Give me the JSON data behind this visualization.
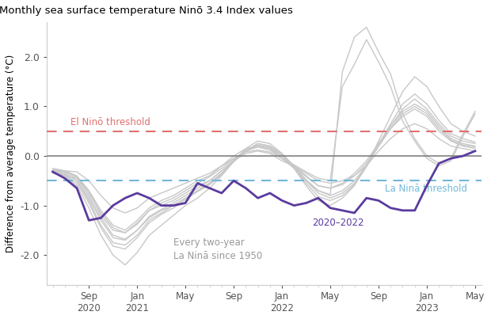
{
  "title": "Monthly sea surface temperature Ninō 3.4 Index values",
  "ylabel": "Difference from average temperature (°C)",
  "el_nino_threshold": 0.5,
  "la_nina_threshold": -0.5,
  "el_nino_label": "El Ninō threshold",
  "la_nina_label": "La Ninā threshold",
  "annotation_historical": "Every two-year\nLa Ninā since 1950",
  "annotation_current": "2020–2022",
  "ylim": [
    -2.6,
    2.7
  ],
  "yticks": [
    -2.0,
    -1.0,
    0.0,
    1.0,
    2.0
  ],
  "current_line_color": "#5B3B9E",
  "historical_line_color": "#C8C8C8",
  "el_nino_color": "#E07070",
  "la_nina_color": "#70B8D8",
  "zero_line_color": "#808080",
  "background_color": "#ffffff",
  "historical_series": [
    [
      -0.35,
      -0.4,
      -0.45,
      -0.7,
      -1.2,
      -1.5,
      -1.55,
      -1.35,
      -1.1,
      -1.0,
      -0.9,
      -0.75,
      -0.6,
      -0.5,
      -0.3,
      -0.1,
      0.05,
      0.1,
      0.05,
      -0.1,
      -0.2,
      -0.35,
      -0.5,
      -0.55,
      -0.5,
      -0.4,
      -0.2,
      0.1,
      0.35,
      0.55,
      0.65,
      0.55,
      0.35,
      0.2,
      0.15,
      0.1
    ],
    [
      -0.3,
      -0.35,
      -0.5,
      -0.85,
      -1.3,
      -1.65,
      -1.7,
      -1.5,
      -1.25,
      -1.1,
      -1.0,
      -0.85,
      -0.7,
      -0.55,
      -0.35,
      -0.1,
      0.1,
      0.2,
      0.15,
      -0.05,
      -0.25,
      -0.5,
      -0.7,
      -0.8,
      -0.7,
      -0.5,
      -0.2,
      0.2,
      0.55,
      0.8,
      0.95,
      0.8,
      0.5,
      0.3,
      0.2,
      0.15
    ],
    [
      -0.25,
      -0.3,
      -0.4,
      -0.7,
      -1.1,
      -1.4,
      -1.5,
      -1.3,
      -1.05,
      -0.9,
      -0.8,
      -0.65,
      -0.5,
      -0.4,
      -0.2,
      0.0,
      0.15,
      0.2,
      0.15,
      0.0,
      -0.2,
      -0.4,
      -0.6,
      -0.65,
      -0.55,
      -0.35,
      -0.1,
      0.25,
      0.6,
      0.9,
      1.05,
      0.9,
      0.6,
      0.35,
      0.25,
      0.2
    ],
    [
      -0.3,
      -0.35,
      -0.5,
      -0.9,
      -1.4,
      -1.75,
      -1.8,
      -1.6,
      -1.3,
      -1.15,
      -1.0,
      -0.85,
      -0.7,
      -0.55,
      -0.35,
      -0.1,
      0.1,
      0.25,
      0.2,
      0.05,
      -0.2,
      -0.5,
      -0.75,
      -0.85,
      -0.75,
      -0.55,
      -0.2,
      0.2,
      0.6,
      0.95,
      1.15,
      0.95,
      0.65,
      0.4,
      0.3,
      0.25
    ],
    [
      -0.3,
      -0.4,
      -0.6,
      -1.05,
      -1.6,
      -2.0,
      -2.2,
      -1.95,
      -1.6,
      -1.4,
      -1.2,
      -1.0,
      -0.85,
      -0.65,
      -0.4,
      -0.1,
      0.15,
      0.3,
      0.25,
      0.05,
      -0.25,
      -0.6,
      -0.9,
      -1.0,
      -0.85,
      -0.6,
      -0.2,
      0.3,
      0.8,
      1.3,
      1.6,
      1.4,
      1.0,
      0.65,
      0.5,
      0.4
    ],
    [
      -0.28,
      -0.3,
      -0.42,
      -0.75,
      -1.15,
      -1.45,
      -1.55,
      -1.38,
      -1.1,
      -0.95,
      -0.85,
      -0.7,
      -0.55,
      -0.42,
      -0.25,
      -0.05,
      0.1,
      0.18,
      0.12,
      -0.05,
      -0.22,
      -0.42,
      -0.6,
      -0.65,
      -0.58,
      -0.4,
      -0.15,
      0.2,
      0.55,
      0.85,
      1.0,
      0.85,
      0.55,
      0.32,
      0.22,
      0.18
    ],
    [
      -0.32,
      -0.38,
      -0.55,
      -0.95,
      -1.45,
      -1.82,
      -1.88,
      -1.65,
      -1.35,
      -1.18,
      -1.05,
      -0.88,
      -0.72,
      -0.58,
      -0.38,
      -0.12,
      0.1,
      0.25,
      0.2,
      0.0,
      -0.25,
      -0.55,
      -0.82,
      -0.9,
      -0.8,
      -0.58,
      -0.22,
      0.22,
      0.65,
      1.05,
      1.25,
      1.05,
      0.72,
      0.45,
      0.35,
      0.28
    ]
  ],
  "historical_series_2": [
    [
      -0.3,
      -0.3,
      -0.32,
      -0.5,
      -0.8,
      -1.05,
      -1.15,
      -1.05,
      -0.85,
      -0.75,
      -0.65,
      -0.55,
      -0.45,
      -0.35,
      -0.2,
      -0.05,
      0.08,
      0.12,
      0.08,
      -0.05,
      -0.18,
      -0.32,
      -0.45,
      -0.5,
      1.4,
      1.85,
      2.35,
      1.9,
      1.4,
      0.7,
      0.3,
      -0.05,
      -0.2,
      -0.1,
      0.4,
      0.85
    ],
    [
      -0.3,
      -0.32,
      -0.45,
      -0.8,
      -1.25,
      -1.6,
      -1.68,
      -1.5,
      -1.22,
      -1.08,
      -0.95,
      -0.8,
      -0.65,
      -0.5,
      -0.3,
      -0.08,
      0.12,
      0.22,
      0.18,
      0.02,
      -0.22,
      -0.48,
      -0.7,
      -0.78,
      1.7,
      2.4,
      2.6,
      2.1,
      1.65,
      0.85,
      0.35,
      0.0,
      -0.15,
      -0.05,
      0.45,
      0.9
    ]
  ],
  "current_series": [
    -0.32,
    -0.45,
    -0.65,
    -1.3,
    -1.25,
    -1.0,
    -0.85,
    -0.75,
    -0.85,
    -1.0,
    -1.0,
    -0.95,
    -0.55,
    -0.65,
    -0.75,
    -0.5,
    -0.65,
    -0.85,
    -0.75,
    -0.9,
    -1.0,
    -0.95,
    -0.85,
    -1.05,
    -1.1,
    -1.15,
    -0.85,
    -0.9,
    -1.05,
    -1.1,
    -1.1,
    -0.6,
    -0.15,
    -0.05,
    0.0,
    0.1
  ],
  "n_months": 36
}
